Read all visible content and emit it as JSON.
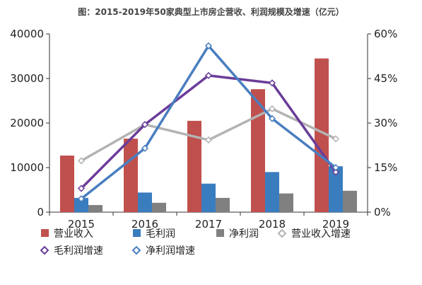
{
  "chart_data": {
    "type": "bar",
    "title": "图：2015-2019年50家典型上市房企营收、利润规模及增速（亿元）",
    "categories": [
      "2015",
      "2016",
      "2017",
      "2018",
      "2019"
    ],
    "y_left": {
      "ticks": [
        "0",
        "10000",
        "20000",
        "30000",
        "40000"
      ],
      "ylim": [
        0,
        40000
      ]
    },
    "y_right": {
      "ticks": [
        "0%",
        "15%",
        "30%",
        "45%",
        "60%"
      ],
      "ylim": [
        0,
        60
      ]
    },
    "bar_series": [
      {
        "name": "营业收入",
        "color": "#c0504d",
        "values": [
          12700,
          16500,
          20500,
          27600,
          34500
        ]
      },
      {
        "name": "毛利润",
        "color": "#3a7dbf",
        "values": [
          3200,
          4400,
          6400,
          9000,
          10300
        ]
      },
      {
        "name": "净利润",
        "color": "#808080",
        "values": [
          1600,
          2100,
          3200,
          4200,
          4800
        ]
      }
    ],
    "line_series": [
      {
        "name": "营业收入增速",
        "color": "#b3b3b3",
        "values": [
          17.3,
          29.5,
          24.3,
          34.8,
          24.7
        ]
      },
      {
        "name": "毛利润增速",
        "color": "#6a3d99",
        "values": [
          8.0,
          29.5,
          46.0,
          43.5,
          13.5
        ]
      },
      {
        "name": "净利润增速",
        "color": "#4a7ec0",
        "values": [
          4.5,
          21.5,
          56.0,
          31.5,
          15.0
        ]
      }
    ],
    "legend_position": "bottom"
  }
}
